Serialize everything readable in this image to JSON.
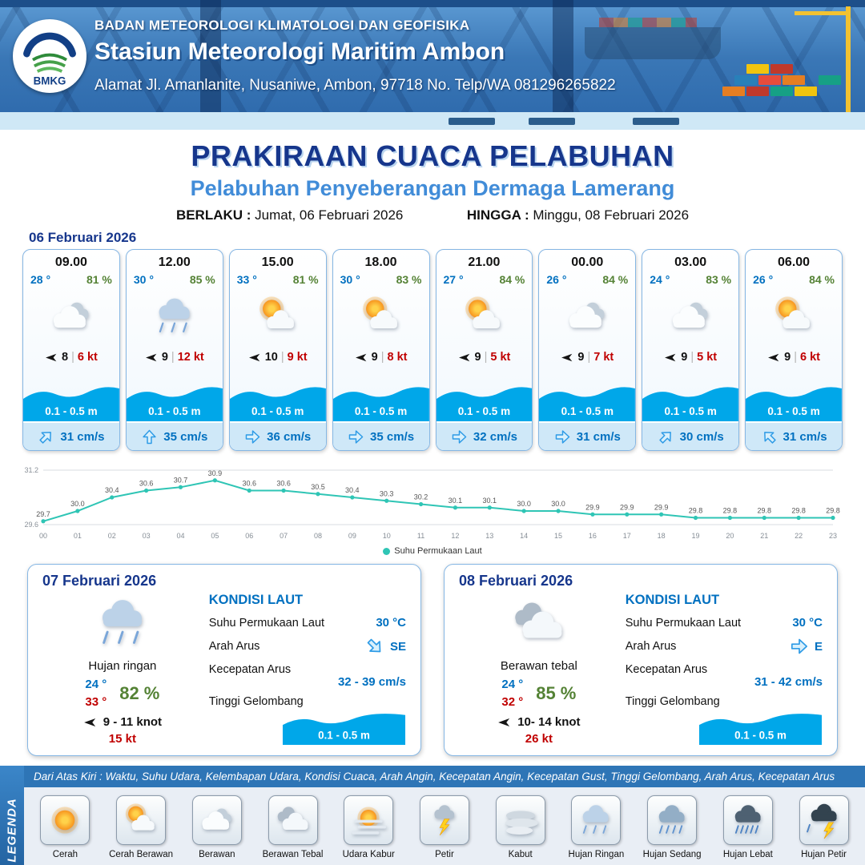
{
  "header": {
    "agency": "BADAN METEOROLOGI KLIMATOLOGI DAN GEOFISIKA",
    "station": "Stasiun Meteorologi Maritim Ambon",
    "address": "Alamat Jl. Amanlanite, Nusaniwe, Ambon, 97718   No. Telp/WA  081296265822",
    "logo_text": "BMKG"
  },
  "title": {
    "main": "PRAKIRAAN CUACA PELABUHAN",
    "subtitle": "Pelabuhan Penyeberangan Dermaga Lamerang",
    "valid_label": "BERLAKU :",
    "valid_value": "Jumat, 06 Februari 2026",
    "until_label": "HINGGA :",
    "until_value": "Minggu, 08 Februari 2026"
  },
  "forecast_date": "06 Februari 2026",
  "labels": {
    "wind_sep": "|"
  },
  "hourly": [
    {
      "time": "09.00",
      "temp": "28 °",
      "humidity": "81 %",
      "icon": "berawan",
      "wind_dir": "W",
      "wind_speed": "8",
      "gust": "6 kt",
      "wave": "0.1 - 0.5 m",
      "current_dir": "NE",
      "current": "31 cm/s"
    },
    {
      "time": "12.00",
      "temp": "30 °",
      "humidity": "85 %",
      "icon": "hujan-ringan",
      "wind_dir": "W",
      "wind_speed": "9",
      "gust": "12 kt",
      "wave": "0.1 - 0.5 m",
      "current_dir": "N",
      "current": "35 cm/s"
    },
    {
      "time": "15.00",
      "temp": "33 °",
      "humidity": "81 %",
      "icon": "cerah-berawan",
      "wind_dir": "W",
      "wind_speed": "10",
      "gust": "9 kt",
      "wave": "0.1 - 0.5 m",
      "current_dir": "E",
      "current": "36 cm/s"
    },
    {
      "time": "18.00",
      "temp": "30 °",
      "humidity": "83 %",
      "icon": "cerah-berawan",
      "wind_dir": "W",
      "wind_speed": "9",
      "gust": "8 kt",
      "wave": "0.1 - 0.5 m",
      "current_dir": "E",
      "current": "35 cm/s"
    },
    {
      "time": "21.00",
      "temp": "27 °",
      "humidity": "84 %",
      "icon": "cerah-berawan",
      "wind_dir": "W",
      "wind_speed": "9",
      "gust": "5 kt",
      "wave": "0.1 - 0.5 m",
      "current_dir": "E",
      "current": "32 cm/s"
    },
    {
      "time": "00.00",
      "temp": "26 °",
      "humidity": "84 %",
      "icon": "berawan",
      "wind_dir": "W",
      "wind_speed": "9",
      "gust": "7 kt",
      "wave": "0.1 - 0.5 m",
      "current_dir": "E",
      "current": "31 cm/s"
    },
    {
      "time": "03.00",
      "temp": "24 °",
      "humidity": "83 %",
      "icon": "berawan",
      "wind_dir": "W",
      "wind_speed": "9",
      "gust": "5 kt",
      "wave": "0.1 - 0.5 m",
      "current_dir": "NE",
      "current": "30 cm/s"
    },
    {
      "time": "06.00",
      "temp": "26 °",
      "humidity": "84 %",
      "icon": "cerah-berawan",
      "wind_dir": "W",
      "wind_speed": "9",
      "gust": "6 kt",
      "wave": "0.1 - 0.5 m",
      "current_dir": "NW",
      "current": "31 cm/s"
    }
  ],
  "chart_data": {
    "type": "line",
    "series_label": "Suhu Permukaan Laut",
    "x": [
      "00",
      "01",
      "02",
      "03",
      "04",
      "05",
      "06",
      "07",
      "08",
      "09",
      "10",
      "11",
      "12",
      "13",
      "14",
      "15",
      "16",
      "17",
      "18",
      "19",
      "20",
      "21",
      "22",
      "23"
    ],
    "values": [
      29.7,
      30.0,
      30.4,
      30.6,
      30.7,
      30.9,
      30.6,
      30.6,
      30.5,
      30.4,
      30.3,
      30.2,
      30.1,
      30.1,
      30.0,
      30.0,
      29.9,
      29.9,
      29.9,
      29.8,
      29.8,
      29.8,
      29.8,
      29.8
    ],
    "ylim": [
      29.6,
      31.2
    ],
    "line_color": "#2fc5b5"
  },
  "sea_labels": {
    "title": "KONDISI LAUT",
    "sst": "Suhu Permukaan Laut",
    "dir": "Arah Arus",
    "speed": "Kecepatan Arus",
    "wave": "Tinggi Gelombang"
  },
  "daily": [
    {
      "date": "07 Februari 2026",
      "icon": "hujan-ringan",
      "condition": "Hujan ringan",
      "temp_min": "24 °",
      "temp_max": "33 °",
      "humidity": "82 %",
      "wind_dir": "W",
      "wind": "9  - 11 knot",
      "gust": "15 kt",
      "sst": "30 °C",
      "current_dir": "SE",
      "current_dir_label": "SE",
      "current_speed": "32 - 39 cm/s",
      "wave": "0.1 - 0.5 m"
    },
    {
      "date": "08 Februari 2026",
      "icon": "berawan-tebal",
      "condition": "Berawan tebal",
      "temp_min": "24 °",
      "temp_max": "32 °",
      "humidity": "85 %",
      "wind_dir": "W",
      "wind": "10- 14 knot",
      "gust": "26 kt",
      "sst": "30 °C",
      "current_dir": "E",
      "current_dir_label": "E",
      "current_speed": "31 - 42 cm/s",
      "wave": "0.1 - 0.5 m"
    }
  ],
  "legend": {
    "side_label": "LEGENDA",
    "bar_text": "Dari Atas Kiri : Waktu, Suhu Udara, Kelembapan Udara, Kondisi Cuaca, Arah Angin, Kecepatan Angin, Kecepatan Gust, Tinggi Gelombang, Arah Arus, Kecepatan Arus",
    "items": [
      {
        "label": "Cerah",
        "icon": "cerah"
      },
      {
        "label": "Cerah Berawan",
        "icon": "cerah-berawan"
      },
      {
        "label": "Berawan",
        "icon": "berawan"
      },
      {
        "label": "Berawan Tebal",
        "icon": "berawan-tebal"
      },
      {
        "label": "Udara Kabur",
        "icon": "udara-kabur"
      },
      {
        "label": "Petir",
        "icon": "petir"
      },
      {
        "label": "Kabut",
        "icon": "kabut"
      },
      {
        "label": "Hujan Ringan",
        "icon": "hujan-ringan"
      },
      {
        "label": "Hujan Sedang",
        "icon": "hujan-sedang"
      },
      {
        "label": "Hujan Lebat",
        "icon": "hujan-lebat"
      },
      {
        "label": "Hujan Petir",
        "icon": "hujan-petir"
      }
    ]
  }
}
